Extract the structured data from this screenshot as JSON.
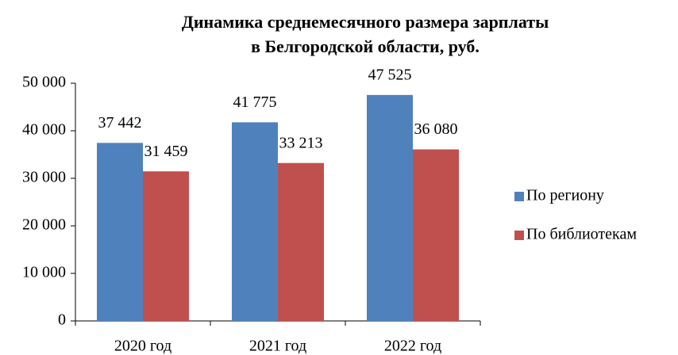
{
  "chart_data": {
    "type": "bar",
    "title": [
      "Динамика среднемесячного размера зарплаты",
      "в Белгородской области, руб."
    ],
    "categories": [
      "2020 год",
      "2021 год",
      "2022 год"
    ],
    "series": [
      {
        "name": "По региону",
        "color": "#4f81bd",
        "values": [
          37442,
          41775,
          47525
        ],
        "value_labels": [
          "37 442",
          "41 775",
          "47 525"
        ]
      },
      {
        "name": "По библиотекам",
        "color": "#c0504d",
        "values": [
          31459,
          33213,
          36080
        ],
        "value_labels": [
          "31 459",
          "33 213",
          "36 080"
        ]
      }
    ],
    "ylim": [
      0,
      50000
    ],
    "yticks": [
      0,
      {
        "value": 10000,
        "label": "10 000"
      },
      {
        "value": 20000,
        "label": "20 000"
      },
      {
        "value": 30000,
        "label": "30 000"
      },
      {
        "value": 40000,
        "label": "40 000"
      },
      {
        "value": 50000,
        "label": "50 000"
      }
    ],
    "legend": "right"
  }
}
